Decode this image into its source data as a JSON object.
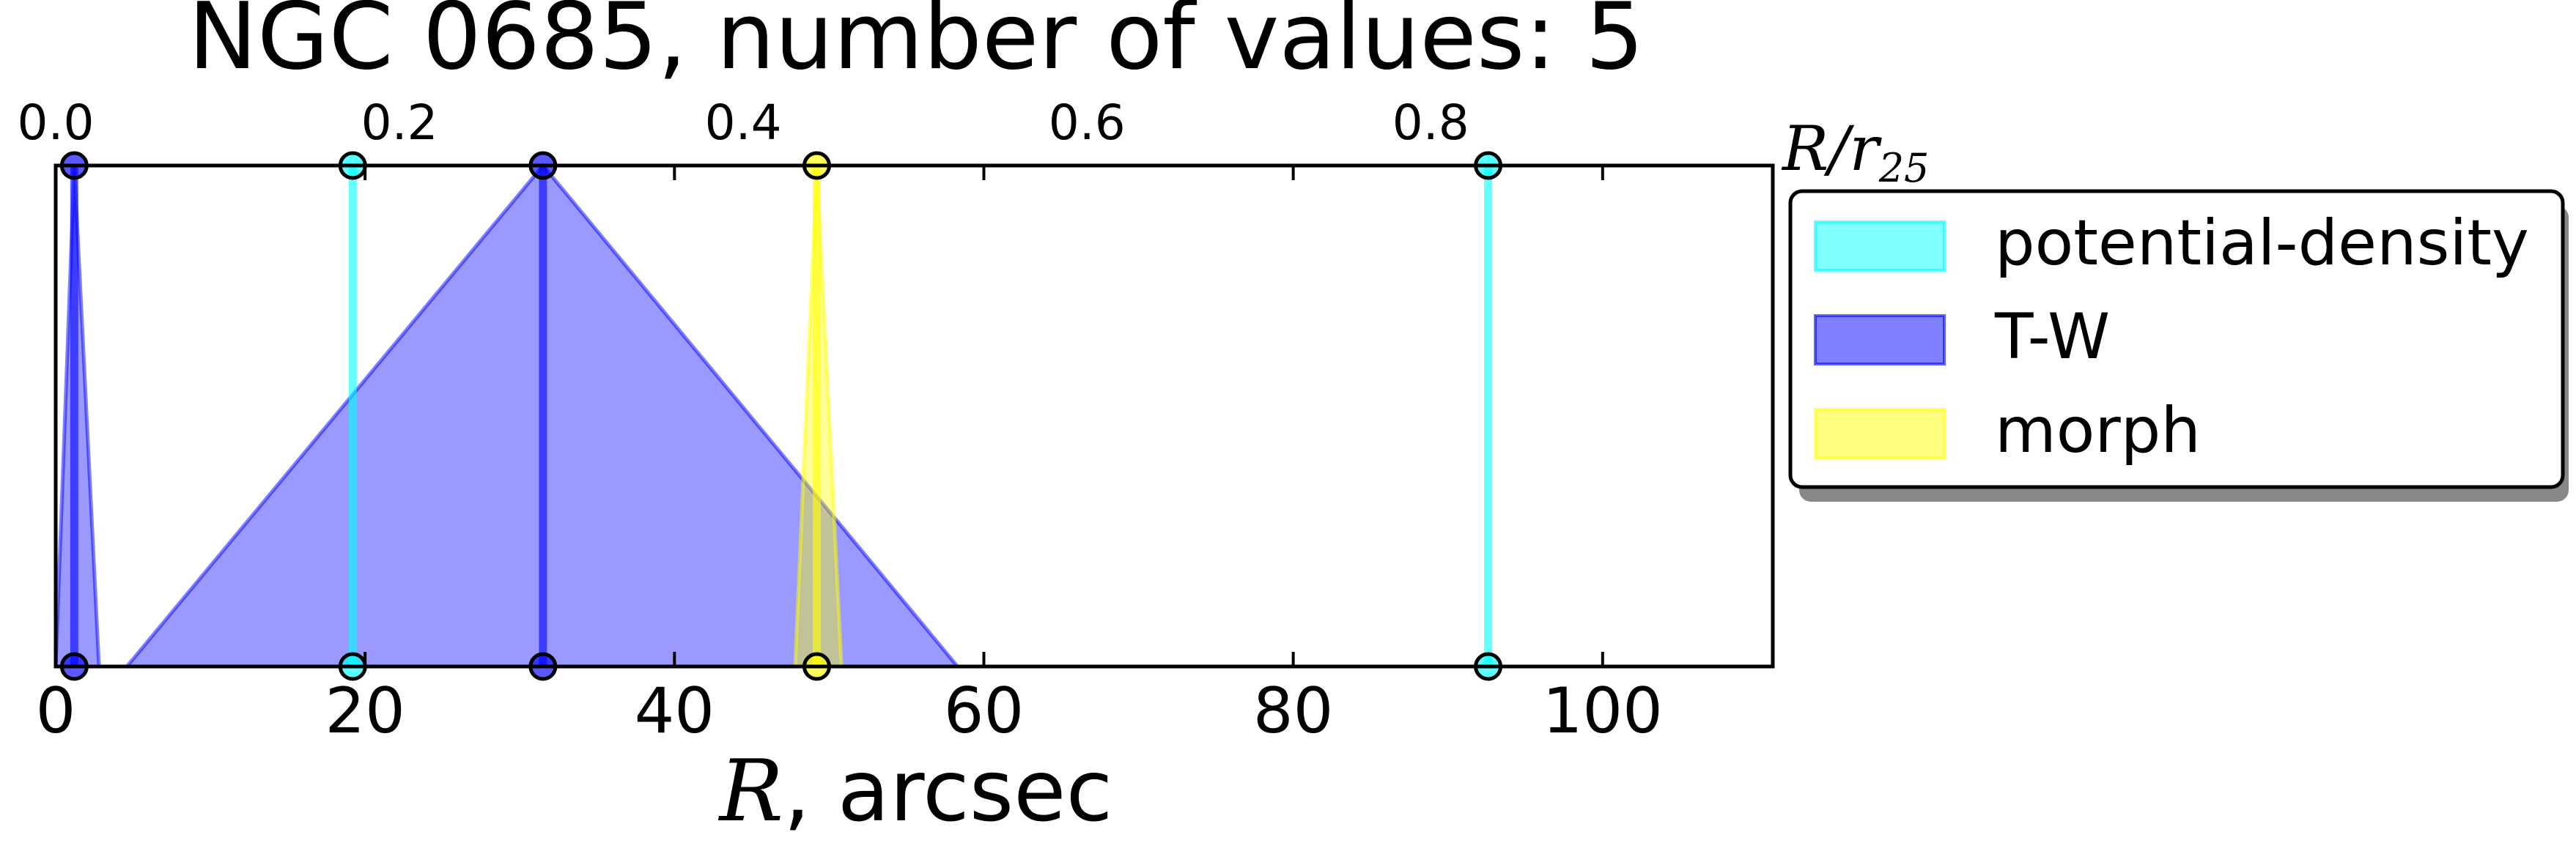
{
  "chart_data": {
    "type": "line",
    "title": "NGC 0685, number of values: 5",
    "xlabel": {
      "var": "R",
      "rest": ", arcsec"
    },
    "x2label": {
      "var": "R/r",
      "sub": "25"
    },
    "xlim": [
      0,
      111
    ],
    "x_ticks": [
      "0",
      "20",
      "40",
      "60",
      "80",
      "100"
    ],
    "x_tick_values": [
      0,
      20,
      40,
      60,
      80,
      100
    ],
    "x2_ticks": [
      "0.0",
      "0.2",
      "0.4",
      "0.6",
      "0.8"
    ],
    "x2_tick_values": [
      0.0,
      0.2,
      0.4,
      0.6,
      0.8
    ],
    "x2_scale": 0.009,
    "series": [
      {
        "name": "potential-density",
        "color": "#00ffff",
        "values": [
          {
            "x": 19.2,
            "lo": 19.2,
            "hi": 19.2
          },
          {
            "x": 92.6,
            "lo": 92.6,
            "hi": 92.6
          }
        ]
      },
      {
        "name": "T-W",
        "color": "#0000ff",
        "values": [
          {
            "x": 1.2,
            "lo": 0.0,
            "hi": 2.8
          },
          {
            "x": 31.5,
            "lo": 4.6,
            "hi": 58.3
          }
        ]
      },
      {
        "name": "morph",
        "color": "#ffff00",
        "values": [
          {
            "x": 49.2,
            "lo": 47.8,
            "hi": 50.8
          }
        ]
      }
    ],
    "legend": {
      "placement": "outside-right"
    },
    "grid": false
  }
}
